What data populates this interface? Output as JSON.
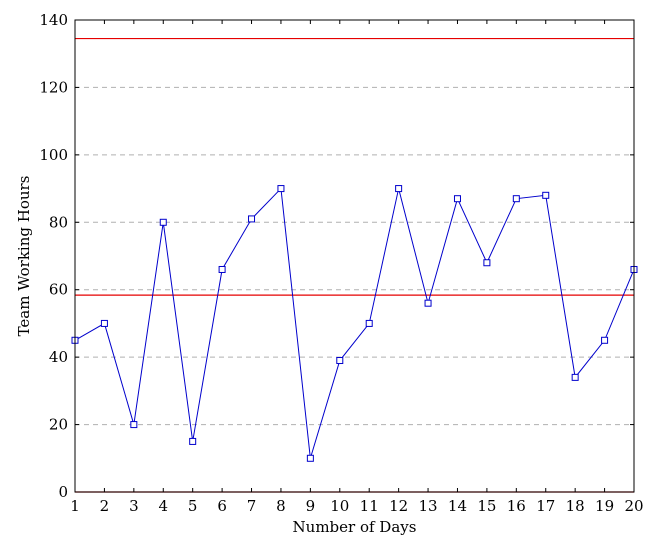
{
  "chart_data": {
    "type": "line",
    "title": "",
    "xlabel": "Number of Days",
    "ylabel": "Team Working Hours",
    "xlim": [
      1,
      20
    ],
    "ylim": [
      0,
      140
    ],
    "x_ticks": [
      1,
      2,
      3,
      4,
      5,
      6,
      7,
      8,
      9,
      10,
      11,
      12,
      13,
      14,
      15,
      16,
      17,
      18,
      19,
      20
    ],
    "y_ticks": [
      0,
      20,
      40,
      60,
      80,
      100,
      120,
      140
    ],
    "grid": "horizontal-dashed",
    "series": [
      {
        "color": "#0000cc",
        "marker": "square-open",
        "x": [
          1,
          2,
          3,
          4,
          5,
          6,
          7,
          8,
          9,
          10,
          11,
          12,
          13,
          14,
          15,
          16,
          17,
          18,
          19,
          20
        ],
        "values": [
          45,
          50,
          20,
          80,
          15,
          66,
          81,
          90,
          10,
          39,
          50,
          90,
          56,
          87,
          68,
          87,
          88,
          34,
          45,
          66
        ]
      }
    ],
    "reference_lines": [
      {
        "y": 134.5,
        "color": "#e60000"
      },
      {
        "y": 58.4,
        "color": "#e60000"
      },
      {
        "y": 0,
        "color": "#e60000"
      }
    ]
  }
}
